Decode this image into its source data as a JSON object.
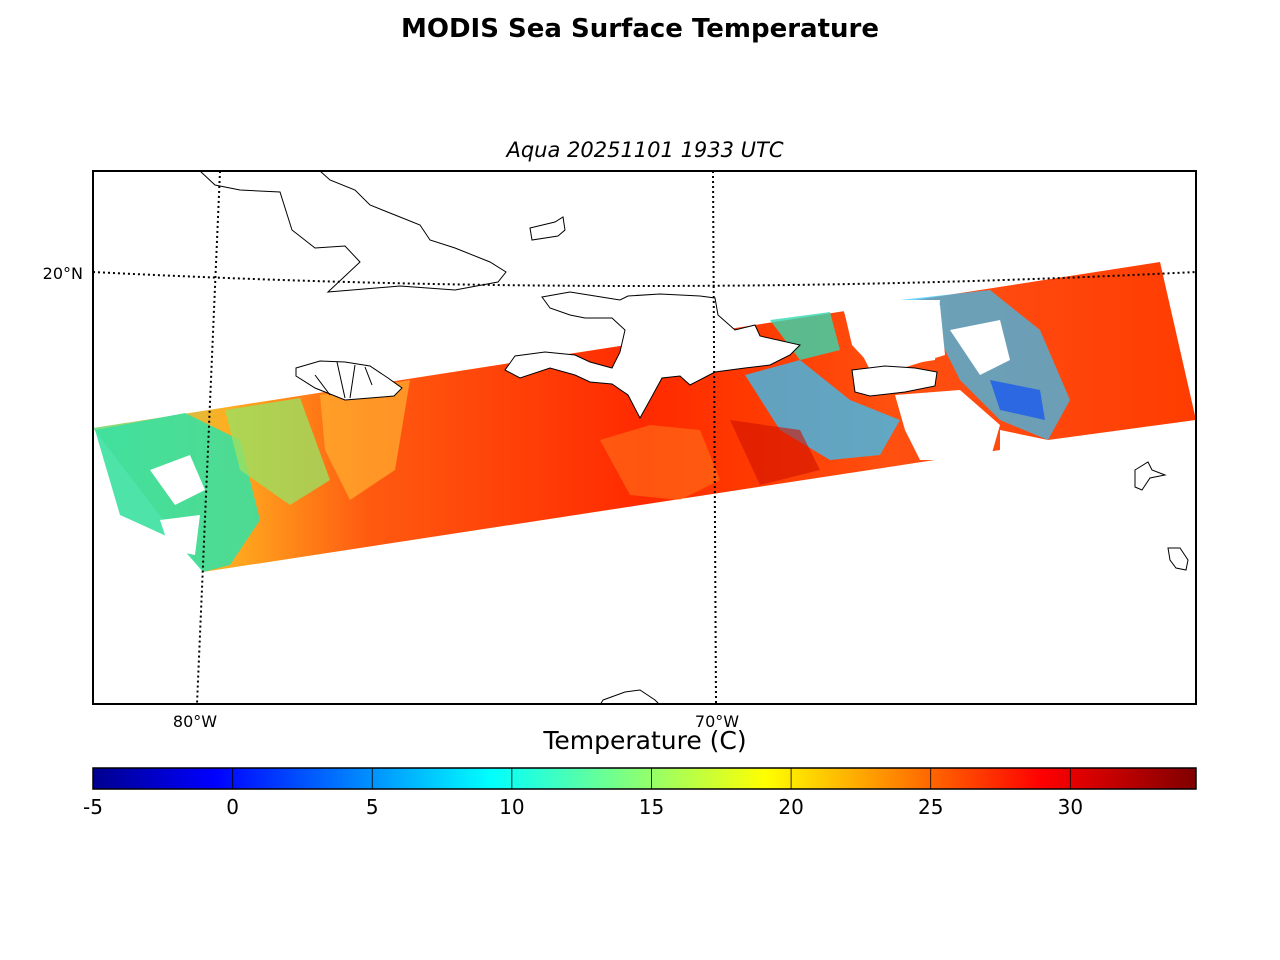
{
  "title": "MODIS Sea Surface Temperature",
  "subtitle": "Aqua 20251101 1933 UTC",
  "map": {
    "lat_labels": [
      "20°N"
    ],
    "lon_labels": [
      "80°W",
      "70°W"
    ]
  },
  "colorbar": {
    "label": "Temperature (C)",
    "ticks": [
      "-5",
      "0",
      "5",
      "10",
      "15",
      "20",
      "25",
      "30"
    ],
    "min": -5,
    "max": 34.5,
    "colormap": "jet"
  },
  "colors": {
    "land_fill": "#ffffff",
    "coast": "#000000",
    "warm": "#ff3300",
    "cool": "#33ffcc"
  }
}
